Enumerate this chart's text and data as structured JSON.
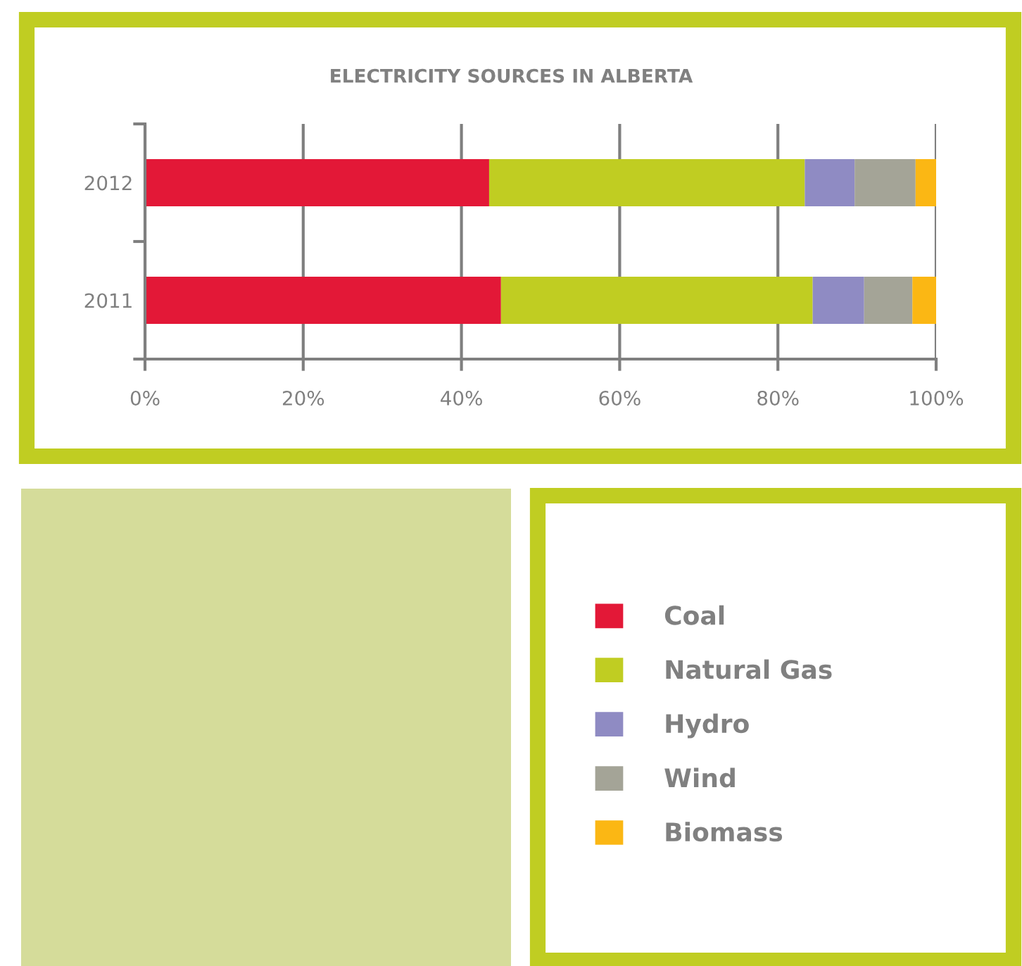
{
  "chart_data": {
    "type": "bar",
    "orientation": "horizontal",
    "stacked": true,
    "title": "ELECTRICITY SOURCES IN ALBERTA",
    "categories": [
      "2012",
      "2011"
    ],
    "series": [
      {
        "name": "Coal",
        "color": "#e31837",
        "values": [
          43.5,
          45.0
        ]
      },
      {
        "name": "Natural Gas",
        "color": "#c0cd22",
        "values": [
          39.9,
          39.4
        ]
      },
      {
        "name": "Hydro",
        "color": "#8f8bc3",
        "values": [
          6.3,
          6.5
        ]
      },
      {
        "name": "Wind",
        "color": "#a4a497",
        "values": [
          7.7,
          6.1
        ]
      },
      {
        "name": "Biomass",
        "color": "#fbb714",
        "values": [
          2.6,
          3.0
        ]
      }
    ],
    "xlim": [
      0,
      100
    ],
    "xticks": [
      {
        "value": 0,
        "label": "0%"
      },
      {
        "value": 20,
        "label": "20%"
      },
      {
        "value": 40,
        "label": "40%"
      },
      {
        "value": 60,
        "label": "60%"
      },
      {
        "value": 80,
        "label": "80%"
      },
      {
        "value": 100,
        "label": "100%"
      }
    ],
    "grid": "x",
    "legend": "bottom right"
  }
}
